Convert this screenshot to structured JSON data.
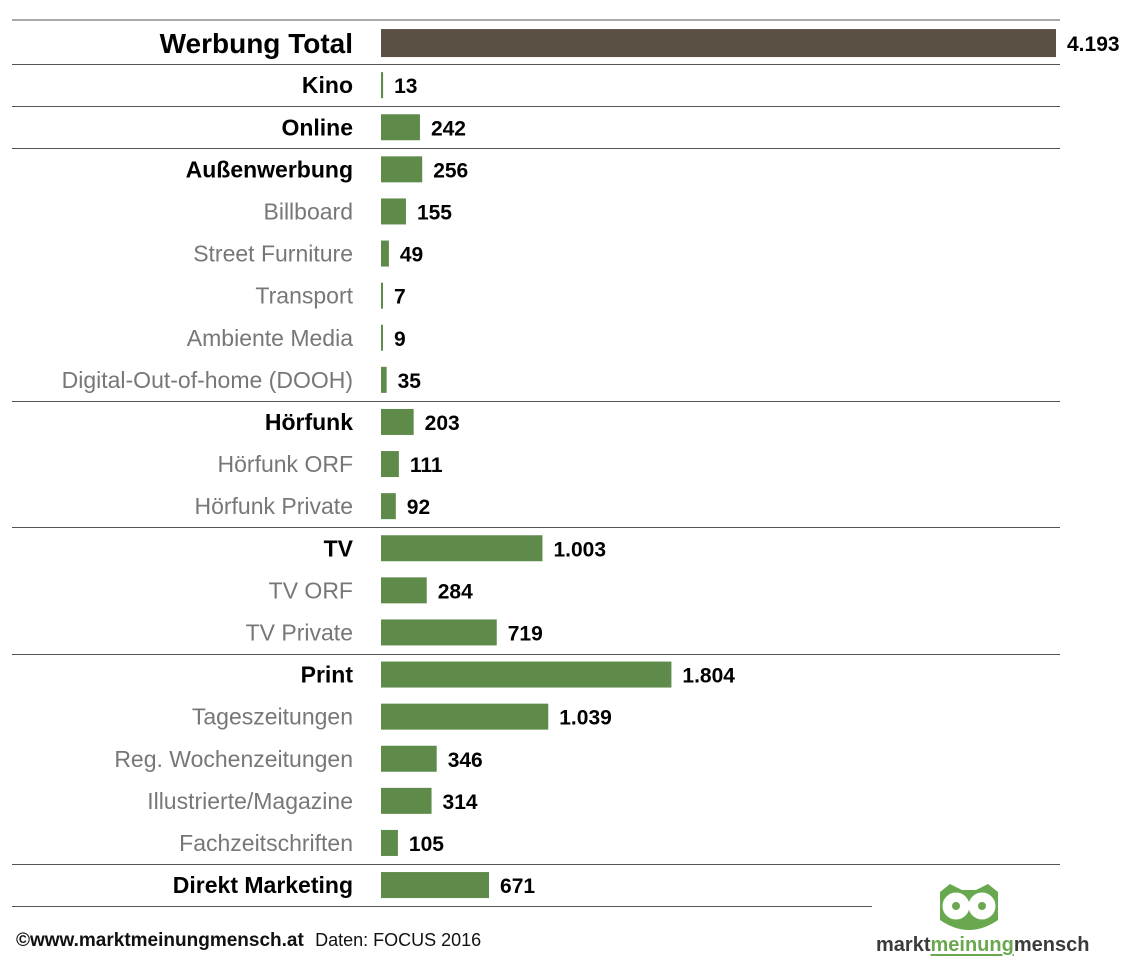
{
  "chart_data": {
    "type": "bar",
    "orientation": "horizontal",
    "grid": false,
    "legend": "none",
    "colors": {
      "total": "#5b5044",
      "bars": "#5e8a4a",
      "bold_label": "#000000",
      "sub_label": "#777777"
    },
    "xlim": [
      0,
      4193
    ],
    "rows": [
      {
        "label": "Werbung Total",
        "value": 4193,
        "value_label": "4.193",
        "level": "total"
      },
      {
        "label": "Kino",
        "value": 13,
        "value_label": "13",
        "level": "group"
      },
      {
        "label": "Online",
        "value": 242,
        "value_label": "242",
        "level": "group"
      },
      {
        "label": "Außenwerbung",
        "value": 256,
        "value_label": "256",
        "level": "group"
      },
      {
        "label": "Billboard",
        "value": 155,
        "value_label": "155",
        "level": "sub"
      },
      {
        "label": "Street Furniture",
        "value": 49,
        "value_label": "49",
        "level": "sub"
      },
      {
        "label": "Transport",
        "value": 7,
        "value_label": "7",
        "level": "sub"
      },
      {
        "label": "Ambiente Media",
        "value": 9,
        "value_label": "9",
        "level": "sub"
      },
      {
        "label": "Digital-Out-of-home (DOOH)",
        "value": 35,
        "value_label": "35",
        "level": "sub"
      },
      {
        "label": "Hörfunk",
        "value": 203,
        "value_label": "203",
        "level": "group"
      },
      {
        "label": "Hörfunk ORF",
        "value": 111,
        "value_label": "111",
        "level": "sub"
      },
      {
        "label": "Hörfunk Private",
        "value": 92,
        "value_label": "92",
        "level": "sub"
      },
      {
        "label": "TV",
        "value": 1003,
        "value_label": "1.003",
        "level": "group"
      },
      {
        "label": "TV ORF",
        "value": 284,
        "value_label": "284",
        "level": "sub"
      },
      {
        "label": "TV Private",
        "value": 719,
        "value_label": "719",
        "level": "sub"
      },
      {
        "label": "Print",
        "value": 1804,
        "value_label": "1.804",
        "level": "group"
      },
      {
        "label": "Tageszeitungen",
        "value": 1039,
        "value_label": "1.039",
        "level": "sub"
      },
      {
        "label": "Reg. Wochenzeitungen",
        "value": 346,
        "value_label": "346",
        "level": "sub"
      },
      {
        "label": "Illustrierte/Magazine",
        "value": 314,
        "value_label": "314",
        "level": "sub"
      },
      {
        "label": "Fachzeitschriften",
        "value": 105,
        "value_label": "105",
        "level": "sub"
      },
      {
        "label": "Direkt Marketing",
        "value": 671,
        "value_label": "671",
        "level": "group"
      }
    ]
  },
  "footer": {
    "copyright": "©www.marktmeinungmensch.at",
    "source": "Daten: FOCUS 2016"
  },
  "logo": {
    "icon": "owl-icon",
    "text_left": "markt",
    "text_mid": "meinung",
    "text_right": "mensch",
    "color": "#6aa84f"
  }
}
